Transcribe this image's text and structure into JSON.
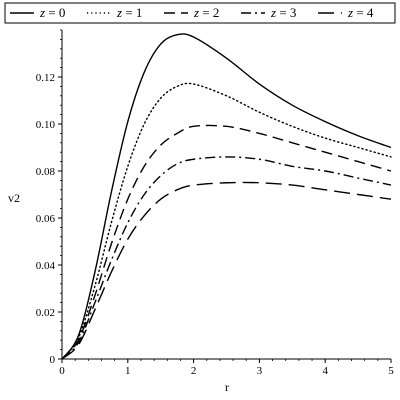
{
  "chart_data": {
    "type": "line",
    "xlabel": "r",
    "ylabel": "v2",
    "xlim": [
      0,
      5
    ],
    "ylim": [
      0,
      0.14
    ],
    "x_ticks": [
      0,
      1,
      2,
      3,
      4,
      5
    ],
    "x_tick_labels": [
      "0",
      "1",
      "2",
      "3",
      "4",
      "5"
    ],
    "y_ticks": [
      0,
      0.02,
      0.04,
      0.06,
      0.08,
      0.1,
      0.12
    ],
    "y_tick_labels": [
      "0",
      "0.02",
      "0.04",
      "0.06",
      "0.08",
      "0.10",
      "0.12"
    ],
    "grid": false,
    "legend_position": "top",
    "series": [
      {
        "name": "z = 0",
        "legend_var": "z",
        "legend_val": "= 0",
        "style": "solid",
        "x": [
          0,
          0.25,
          0.5,
          0.75,
          1.0,
          1.25,
          1.5,
          1.75,
          2.0,
          2.5,
          3.0,
          3.5,
          4.0,
          4.5,
          5.0
        ],
        "y": [
          0,
          0.01,
          0.037,
          0.071,
          0.101,
          0.122,
          0.134,
          0.138,
          0.137,
          0.128,
          0.117,
          0.108,
          0.101,
          0.095,
          0.09
        ]
      },
      {
        "name": "z = 1",
        "legend_var": "z",
        "legend_val": "= 1",
        "style": "dotted",
        "x": [
          0,
          0.25,
          0.5,
          0.75,
          1.0,
          1.25,
          1.5,
          1.75,
          2.0,
          2.5,
          3.0,
          3.5,
          4.0,
          4.5,
          5.0
        ],
        "y": [
          0,
          0.009,
          0.031,
          0.058,
          0.082,
          0.1,
          0.111,
          0.116,
          0.117,
          0.112,
          0.105,
          0.099,
          0.094,
          0.09,
          0.086
        ]
      },
      {
        "name": "z = 2",
        "legend_var": "z",
        "legend_val": "= 2",
        "style": "dashed",
        "x": [
          0,
          0.25,
          0.5,
          0.75,
          1.0,
          1.25,
          1.5,
          1.75,
          2.0,
          2.5,
          3.0,
          3.5,
          4.0,
          4.5,
          5.0
        ],
        "y": [
          0,
          0.008,
          0.027,
          0.049,
          0.068,
          0.082,
          0.091,
          0.096,
          0.099,
          0.099,
          0.096,
          0.092,
          0.088,
          0.084,
          0.08
        ]
      },
      {
        "name": "z = 3",
        "legend_var": "z",
        "legend_val": "= 3",
        "style": "dashdot",
        "x": [
          0,
          0.25,
          0.5,
          0.75,
          1.0,
          1.25,
          1.5,
          1.75,
          2.0,
          2.5,
          3.0,
          3.5,
          4.0,
          4.5,
          5.0
        ],
        "y": [
          0,
          0.007,
          0.024,
          0.042,
          0.058,
          0.07,
          0.078,
          0.083,
          0.085,
          0.086,
          0.085,
          0.082,
          0.08,
          0.077,
          0.074
        ]
      },
      {
        "name": "z = 4",
        "legend_var": "z",
        "legend_val": "= 4",
        "style": "longdash",
        "x": [
          0,
          0.25,
          0.5,
          0.75,
          1.0,
          1.25,
          1.5,
          1.75,
          2.0,
          2.5,
          3.0,
          3.5,
          4.0,
          4.5,
          5.0
        ],
        "y": [
          0,
          0.006,
          0.021,
          0.037,
          0.051,
          0.061,
          0.068,
          0.072,
          0.074,
          0.075,
          0.075,
          0.074,
          0.072,
          0.07,
          0.068
        ]
      }
    ]
  }
}
